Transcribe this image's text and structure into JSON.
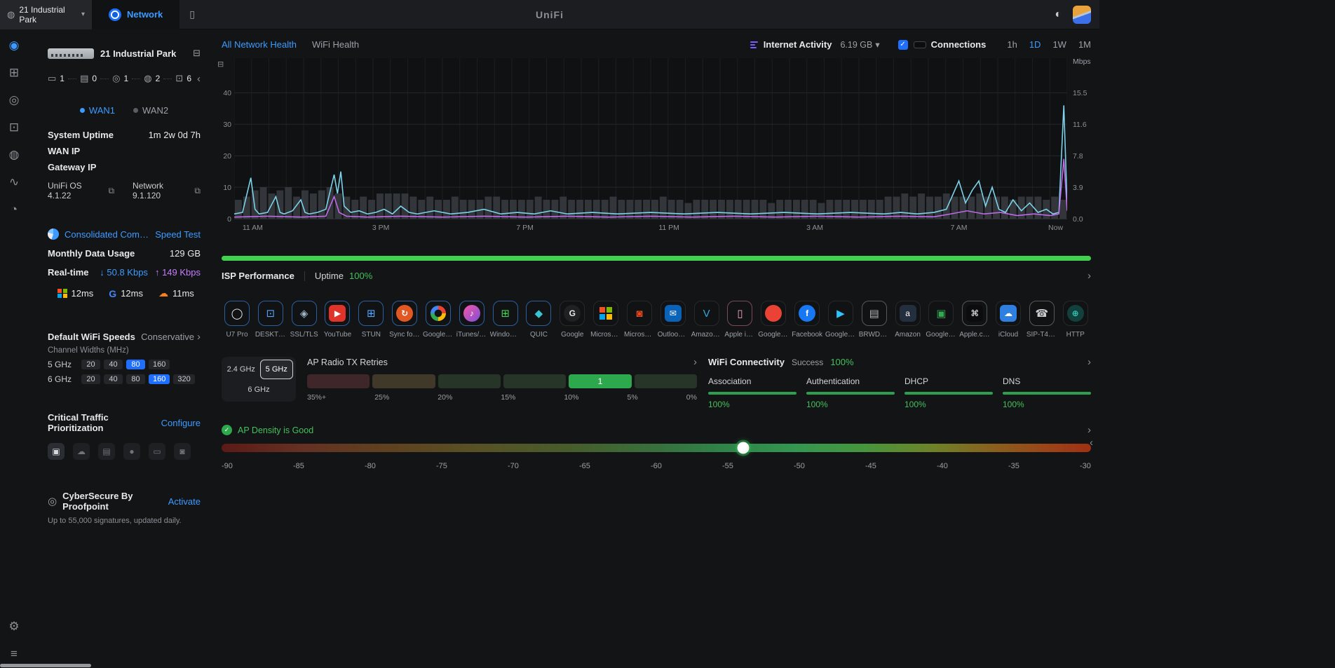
{
  "icons": {
    "chevron_right": "›",
    "chevron_left": "‹",
    "chevron_down": "▾",
    "check": "✓",
    "theme_toggle": "◐",
    "globe": "◍",
    "mobile_device": "▯",
    "ports": "⊟",
    "shield": "◎",
    "chart_tool": "⊟",
    "down_arrow": "↓",
    "up_arrow": "↑"
  },
  "topbar": {
    "site_name": "21 Industrial Park",
    "nav_tab": "Network",
    "brand": "UniFi"
  },
  "rail": {
    "top": [
      {
        "id": "dashboard",
        "glyph": "◉",
        "active": true
      },
      {
        "id": "topology",
        "glyph": "⊞"
      },
      {
        "id": "unifi-devices",
        "glyph": "◎"
      },
      {
        "id": "client-devices",
        "glyph": "⊡"
      },
      {
        "id": "teams",
        "glyph": "◍"
      },
      {
        "id": "insights",
        "glyph": "∿"
      },
      {
        "id": "security",
        "glyph": "◔"
      }
    ],
    "bottom": [
      {
        "id": "settings",
        "glyph": "⚙"
      },
      {
        "id": "system-log",
        "glyph": "≡"
      }
    ]
  },
  "sidebar": {
    "device_name": "21 Industrial Park",
    "counts": [
      {
        "id": "wan",
        "glyph": "▭",
        "value": "1"
      },
      {
        "id": "switches",
        "glyph": "▤",
        "value": "0"
      },
      {
        "id": "gateways",
        "glyph": "◎",
        "value": "1"
      },
      {
        "id": "access-points",
        "glyph": "◍",
        "value": "2"
      },
      {
        "id": "clients",
        "glyph": "⊡",
        "value": "6"
      }
    ],
    "wan_tabs": [
      {
        "label": "WAN1",
        "active": true
      },
      {
        "label": "WAN2",
        "active": false
      }
    ],
    "info_rows": [
      {
        "label": "System Uptime",
        "value": "1m 2w 0d 7h"
      },
      {
        "label": "WAN IP",
        "value": ""
      },
      {
        "label": "Gateway IP",
        "value": ""
      }
    ],
    "versions": [
      {
        "label": "UniFi OS 4.1.22"
      },
      {
        "label": "Network 9.1.120"
      }
    ],
    "isp": {
      "name": "Consolidated Communi",
      "speed_test": "Speed Test"
    },
    "usage": {
      "label": "Monthly Data Usage",
      "value": "129 GB"
    },
    "realtime": {
      "label": "Real-time",
      "down": "50.8 Kbps",
      "up": "149 Kbps"
    },
    "latency": [
      {
        "id": "microsoft",
        "type": "ms",
        "value": "12ms"
      },
      {
        "id": "google",
        "glyph": "G",
        "color": "#4285f4",
        "value": "12ms"
      },
      {
        "id": "cloudflare",
        "glyph": "☁",
        "color": "#f6821f",
        "value": "11ms"
      }
    ],
    "wifi_speeds": {
      "title": "Default WiFi Speeds",
      "mode": "Conservative",
      "subtitle": "Channel Widths (MHz)",
      "bands": [
        {
          "band": "5 GHz",
          "options": [
            "20",
            "40",
            "80",
            "160"
          ],
          "selected": "80"
        },
        {
          "band": "6 GHz",
          "options": [
            "20",
            "40",
            "80",
            "160",
            "320"
          ],
          "selected": "160"
        }
      ]
    },
    "ctp": {
      "title": "Critical Traffic Prioritization",
      "action": "Configure",
      "icons": [
        "▣",
        "☁",
        "▤",
        "●",
        "▭",
        "◙"
      ]
    },
    "cybersecure": {
      "title": "CyberSecure By Proofpoint",
      "action": "Activate",
      "subtitle": "Up to 55,000 signatures, updated daily."
    }
  },
  "main": {
    "tabs": [
      {
        "label": "All Network Health",
        "active": true
      },
      {
        "label": "WiFi Health",
        "active": false
      }
    ],
    "activity": {
      "label": "Internet Activity",
      "total": "6.19 GB",
      "connections_label": "Connections"
    },
    "ranges": [
      {
        "label": "1h"
      },
      {
        "label": "1D",
        "active": true
      },
      {
        "label": "1W"
      },
      {
        "label": "1M"
      }
    ],
    "isp_row": {
      "title": "ISP Performance",
      "uptime_label": "Uptime",
      "uptime_value": "100%"
    },
    "clients": [
      {
        "icon": "u7-pro",
        "label": "U7 Pro",
        "glyph": "◯",
        "fg": "#e8eaed",
        "border": "#2b5f9e"
      },
      {
        "icon": "desktop",
        "label": "DESKTOP-...",
        "glyph": "⊡",
        "fg": "#57a7ff",
        "border": "#2b5f9e"
      },
      {
        "icon": "ssl-tls",
        "label": "SSL/TLS",
        "glyph": "◈",
        "fg": "#9fb6c9",
        "border": "#2b5f9e"
      },
      {
        "icon": "youtube",
        "label": "YouTube",
        "shape": "sq",
        "sbg": "#e0342b",
        "glyph": "▶",
        "fg": "#ffffff",
        "border": "#2b5f9e"
      },
      {
        "icon": "stun",
        "label": "STUN",
        "glyph": "⊞",
        "fg": "#57a7ff",
        "border": "#2b5f9e"
      },
      {
        "icon": "sync",
        "label": "Sync for ...",
        "shape": "circ",
        "sbg": "#e25822",
        "glyph": "↻",
        "fg": "#ffffff",
        "border": "#2b5f9e"
      },
      {
        "icon": "google-apis",
        "label": "Google A...",
        "type": "gc",
        "border": "#2b5f9e"
      },
      {
        "icon": "itunes-apple",
        "label": "iTunes/Ap...",
        "shape": "circ",
        "sbg": "linear-gradient(135deg,#f857a6,#7b4fd8)",
        "glyph": "♪",
        "fg": "#ffffff",
        "border": "#2b5f9e"
      },
      {
        "icon": "windows",
        "label": "Windows ...",
        "glyph": "⊞",
        "fg": "#4ad15a",
        "border": "#2b5f9e"
      },
      {
        "icon": "quic",
        "label": "QUIC",
        "glyph": "◆",
        "fg": "#39c5cf",
        "border": "#2b5f9e"
      },
      {
        "icon": "google",
        "label": "Google",
        "shape": "circ",
        "sbg": "#1f2124",
        "glyph": "G",
        "fg": "#e8eaed"
      },
      {
        "icon": "microsoft",
        "label": "Microsoft...",
        "type": "ms"
      },
      {
        "icon": "microsoft-365",
        "label": "Microsoft...",
        "glyph": "◙",
        "fg": "#e8491d"
      },
      {
        "icon": "outlook",
        "label": "Outlook.c...",
        "shape": "sq",
        "sbg": "#0b63b8",
        "glyph": "✉",
        "fg": "#ffffff"
      },
      {
        "icon": "prime-video",
        "label": "Amazon ...",
        "glyph": "V",
        "fg": "#2ea8e0"
      },
      {
        "icon": "apple-iphone",
        "label": "Apple iPh...",
        "glyph": "▯",
        "fg": "#f0a6c0",
        "border": "#7a4a5a"
      },
      {
        "icon": "google-static",
        "label": "Google St...",
        "shape": "circ",
        "sbg": "#ea4335",
        "glyph": "",
        "fg": "#ffffff"
      },
      {
        "icon": "facebook",
        "label": "Facebook",
        "shape": "circ",
        "sbg": "#1877f2",
        "glyph": "f",
        "fg": "#ffffff"
      },
      {
        "icon": "google-play",
        "label": "Google Pl...",
        "glyph": "▶",
        "fg": "#2ec5ff"
      },
      {
        "icon": "brother-printer",
        "label": "BRWD88...",
        "glyph": "▤",
        "fg": "#aeb4ba",
        "border": "#55595e"
      },
      {
        "icon": "amazon",
        "label": "Amazon",
        "shape": "sq",
        "sbg": "#232f3e",
        "glyph": "a",
        "fg": "#ffffff"
      },
      {
        "icon": "google-usercontent",
        "label": "Google U...",
        "glyph": "▣",
        "fg": "#34a853"
      },
      {
        "icon": "apple",
        "label": "Apple.com",
        "shape": "sq",
        "sbg": "#0c0c0e",
        "glyph": "⌘",
        "fg": "#ffffff",
        "border": "#55595e"
      },
      {
        "icon": "icloud",
        "label": "iCloud",
        "shape": "sq",
        "sbg": "#2f7fe0",
        "glyph": "☁",
        "fg": "#ffffff"
      },
      {
        "icon": "sip-phone",
        "label": "SIP-T46S ...",
        "glyph": "☎",
        "fg": "#c8cdd2",
        "border": "#55595e"
      },
      {
        "icon": "http",
        "label": "HTTP",
        "shape": "circ",
        "sbg": "#12413d",
        "glyph": "⊕",
        "fg": "#35c7b8"
      }
    ],
    "radio": {
      "bands": [
        "2.4 GHz",
        "5 GHz",
        "6 GHz"
      ],
      "selected": "5 GHz",
      "title": "AP Radio TX Retries",
      "segments": [
        {
          "color": "#3f2629"
        },
        {
          "color": "#403828"
        },
        {
          "color": "#273528"
        },
        {
          "color": "#273528"
        },
        {
          "color": "#2ea84d",
          "label": "1"
        },
        {
          "color": "#273528"
        }
      ],
      "scale": [
        "35%+",
        "25%",
        "20%",
        "15%",
        "10%",
        "5%",
        "0%"
      ]
    },
    "connectivity": {
      "title": "WiFi Connectivity",
      "success_label": "Success",
      "success_value": "100%",
      "metrics": [
        {
          "label": "Association",
          "value": "100%"
        },
        {
          "label": "Authentication",
          "value": "100%"
        },
        {
          "label": "DHCP",
          "value": "100%"
        },
        {
          "label": "DNS",
          "value": "100%"
        }
      ]
    },
    "density": {
      "status": "AP Density is Good",
      "marker_pos_pct": 60,
      "marker_value_dbm": -54,
      "scale": [
        "-90",
        "-85",
        "-80",
        "-75",
        "-70",
        "-65",
        "-60",
        "-55",
        "-50",
        "-45",
        "-40",
        "-35",
        "-30"
      ]
    }
  },
  "chart_data": {
    "type": "line",
    "title": "Internet Activity",
    "unit_right": "Mbps",
    "ylim": [
      0,
      51
    ],
    "y_left_ticks": [
      40,
      30,
      20,
      10,
      0
    ],
    "y_right_tick_labels": [
      "15.5",
      "11.6",
      "7.8",
      "3.9",
      "0.0"
    ],
    "x_ticks": [
      "11 AM",
      "3 PM",
      "7 PM",
      "11 PM",
      "3 AM",
      "7 AM",
      "Now"
    ],
    "x_tick_pos_pct": [
      1,
      17.6,
      34.9,
      52.2,
      69.7,
      87,
      99.5
    ],
    "grid": true,
    "legend_position": "none",
    "series": [
      {
        "name": "Download",
        "color": "#7dd3ea",
        "points": [
          [
            0,
            1.5
          ],
          [
            1,
            2
          ],
          [
            2,
            13
          ],
          [
            2.5,
            3
          ],
          [
            3,
            1.5
          ],
          [
            4,
            2
          ],
          [
            5,
            7
          ],
          [
            5.5,
            2
          ],
          [
            6,
            1.5
          ],
          [
            7,
            2.5
          ],
          [
            8,
            6
          ],
          [
            8.5,
            2
          ],
          [
            9,
            1.5
          ],
          [
            10,
            2
          ],
          [
            11,
            3
          ],
          [
            12,
            14
          ],
          [
            12.4,
            8
          ],
          [
            12.8,
            15
          ],
          [
            13.2,
            4
          ],
          [
            14,
            2
          ],
          [
            15,
            2.5
          ],
          [
            16,
            1.5
          ],
          [
            17,
            2
          ],
          [
            18,
            3
          ],
          [
            19,
            1.5
          ],
          [
            20,
            4
          ],
          [
            21,
            2
          ],
          [
            22,
            1.5
          ],
          [
            24,
            2.5
          ],
          [
            26,
            1.5
          ],
          [
            28,
            2
          ],
          [
            30,
            3
          ],
          [
            32,
            1.5
          ],
          [
            34,
            2
          ],
          [
            36,
            1.5
          ],
          [
            38,
            2.5
          ],
          [
            40,
            1.5
          ],
          [
            43,
            2
          ],
          [
            46,
            1.5
          ],
          [
            50,
            2
          ],
          [
            54,
            1.5
          ],
          [
            58,
            2
          ],
          [
            62,
            1.5
          ],
          [
            66,
            2
          ],
          [
            70,
            1.5
          ],
          [
            74,
            2
          ],
          [
            78,
            1.5
          ],
          [
            80,
            2
          ],
          [
            82,
            1.5
          ],
          [
            84,
            2
          ],
          [
            85.5,
            3
          ],
          [
            87,
            12
          ],
          [
            87.8,
            5
          ],
          [
            88.6,
            9
          ],
          [
            89.4,
            12
          ],
          [
            90.2,
            4
          ],
          [
            91,
            10
          ],
          [
            91.8,
            3
          ],
          [
            92.6,
            2
          ],
          [
            93.5,
            6
          ],
          [
            94.5,
            2.5
          ],
          [
            95.5,
            5
          ],
          [
            96.5,
            2
          ],
          [
            97.5,
            3
          ],
          [
            98.3,
            1.5
          ],
          [
            99,
            2
          ],
          [
            99.6,
            36
          ],
          [
            100,
            4
          ]
        ]
      },
      {
        "name": "Upload",
        "color": "#c06ae8",
        "points": [
          [
            0,
            0.5
          ],
          [
            4,
            0.8
          ],
          [
            8,
            0.5
          ],
          [
            11,
            0.8
          ],
          [
            12,
            7
          ],
          [
            12.6,
            2
          ],
          [
            13.5,
            0.8
          ],
          [
            16,
            0.5
          ],
          [
            20,
            0.8
          ],
          [
            25,
            0.5
          ],
          [
            30,
            0.8
          ],
          [
            35,
            0.5
          ],
          [
            40,
            0.8
          ],
          [
            45,
            0.5
          ],
          [
            50,
            0.8
          ],
          [
            55,
            0.5
          ],
          [
            60,
            0.8
          ],
          [
            65,
            0.5
          ],
          [
            70,
            0.8
          ],
          [
            75,
            0.5
          ],
          [
            80,
            0.8
          ],
          [
            84,
            0.6
          ],
          [
            86,
            1.5
          ],
          [
            88,
            2.5
          ],
          [
            90,
            1.5
          ],
          [
            92,
            2
          ],
          [
            94,
            1
          ],
          [
            96,
            1.5
          ],
          [
            98,
            1
          ],
          [
            99,
            1.5
          ],
          [
            99.6,
            19
          ],
          [
            100,
            2.5
          ]
        ]
      },
      {
        "name": "Connections",
        "chart": "bar",
        "color": "#383c41",
        "values": [
          6,
          7,
          9,
          10,
          8,
          9,
          10,
          7,
          9,
          8,
          9,
          10,
          8,
          7,
          6,
          7,
          6,
          8,
          8,
          8,
          8,
          7,
          6,
          7,
          6,
          6,
          7,
          6,
          6,
          6,
          7,
          7,
          6,
          6,
          6,
          6,
          7,
          6,
          6,
          7,
          6,
          6,
          6,
          6,
          6,
          7,
          6,
          6,
          6,
          6,
          6,
          7,
          6,
          6,
          5,
          6,
          6,
          6,
          6,
          6,
          6,
          6,
          6,
          6,
          5,
          6,
          6,
          6,
          6,
          6,
          5,
          6,
          6,
          6,
          6,
          6,
          6,
          6,
          7,
          7,
          8,
          7,
          8,
          7,
          7,
          8,
          7,
          7,
          7,
          8,
          7,
          7,
          7,
          6,
          7,
          7,
          7,
          6,
          7,
          6
        ]
      }
    ]
  }
}
